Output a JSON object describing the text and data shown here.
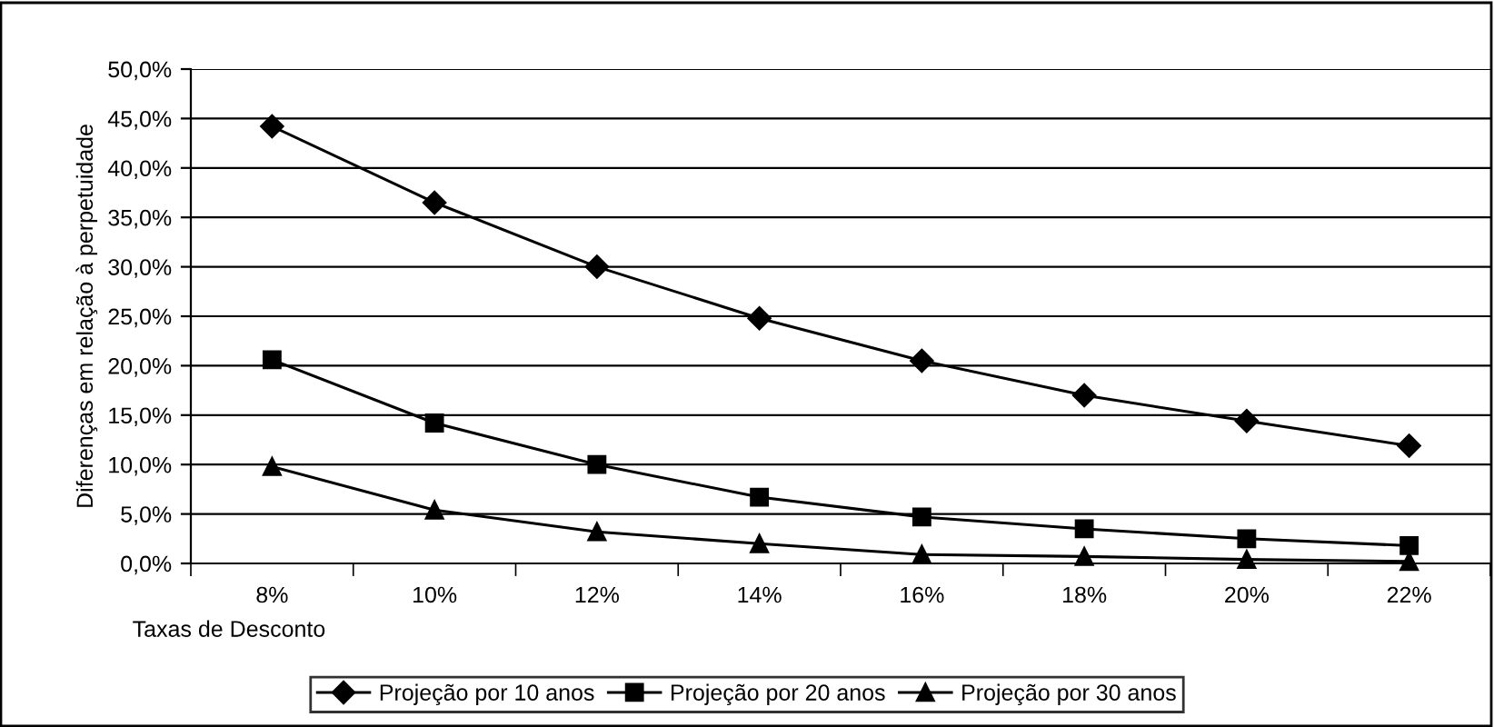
{
  "chart_data": {
    "type": "line",
    "xlabel": "Taxas de Desconto",
    "ylabel": "Diferenças em relação à perpetuidade",
    "categories": [
      "8%",
      "10%",
      "12%",
      "14%",
      "16%",
      "18%",
      "20%",
      "22%"
    ],
    "series": [
      {
        "name": "Projeção por 10 anos",
        "color": "#000000",
        "marker": "diamond",
        "values": [
          44.2,
          36.5,
          30.0,
          24.8,
          20.5,
          17.0,
          14.4,
          11.9
        ]
      },
      {
        "name": "Projeção por 20 anos",
        "color": "#000000",
        "marker": "square",
        "values": [
          20.6,
          14.2,
          10.0,
          6.7,
          4.7,
          3.5,
          2.5,
          1.8
        ]
      },
      {
        "name": "Projeção por 30 anos",
        "color": "#000000",
        "marker": "triangle",
        "values": [
          9.8,
          5.4,
          3.2,
          2.0,
          0.9,
          0.7,
          0.4,
          0.2
        ]
      }
    ],
    "ylim": [
      0,
      50
    ],
    "yticks": [
      {
        "value": 0,
        "label": "0,0%"
      },
      {
        "value": 5,
        "label": "5,0%"
      },
      {
        "value": 10,
        "label": "10,0%"
      },
      {
        "value": 15,
        "label": "15,0%"
      },
      {
        "value": 20,
        "label": "20,0%"
      },
      {
        "value": 25,
        "label": "25,0%"
      },
      {
        "value": 30,
        "label": "30,0%"
      },
      {
        "value": 35,
        "label": "35,0%"
      },
      {
        "value": 40,
        "label": "40,0%"
      },
      {
        "value": 45,
        "label": "45,0%"
      },
      {
        "value": 50,
        "label": "50,0%"
      }
    ],
    "grid": "y",
    "legend": "bottom",
    "line_style": "solid"
  }
}
